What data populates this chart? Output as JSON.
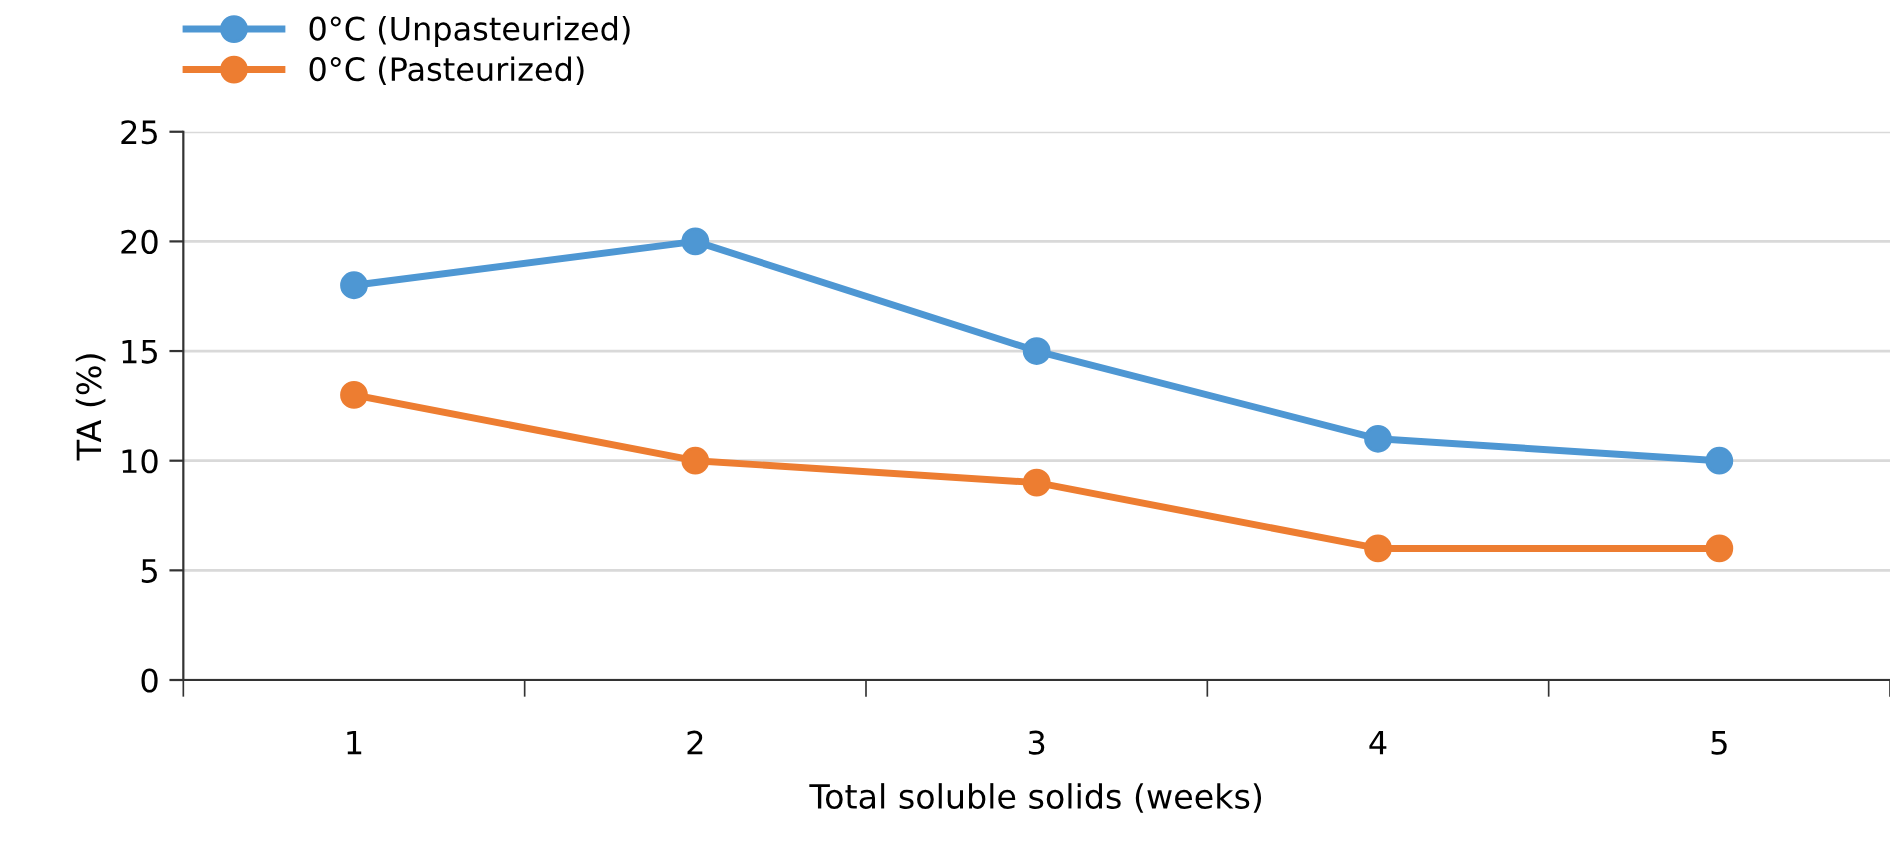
{
  "chart_data": {
    "type": "line",
    "xlabel": "Total soluble solids (weeks)",
    "ylabel": "TA (%)",
    "categories": [
      "1",
      "2",
      "3",
      "4",
      "5"
    ],
    "series": [
      {
        "name": "0°C (Unpasteurized)",
        "color": "#4e97d3",
        "values": [
          18,
          20,
          15,
          11,
          10
        ]
      },
      {
        "name": "0°C (Pasteurized)",
        "color": "#ed7d31",
        "values": [
          13,
          10,
          9,
          6,
          6
        ]
      }
    ],
    "ylim": [
      0,
      25
    ],
    "yticks": [
      0,
      5,
      10,
      15,
      20,
      25
    ],
    "grid": "y",
    "legend": "top left",
    "marker": "circle",
    "line_style": "solid"
  }
}
